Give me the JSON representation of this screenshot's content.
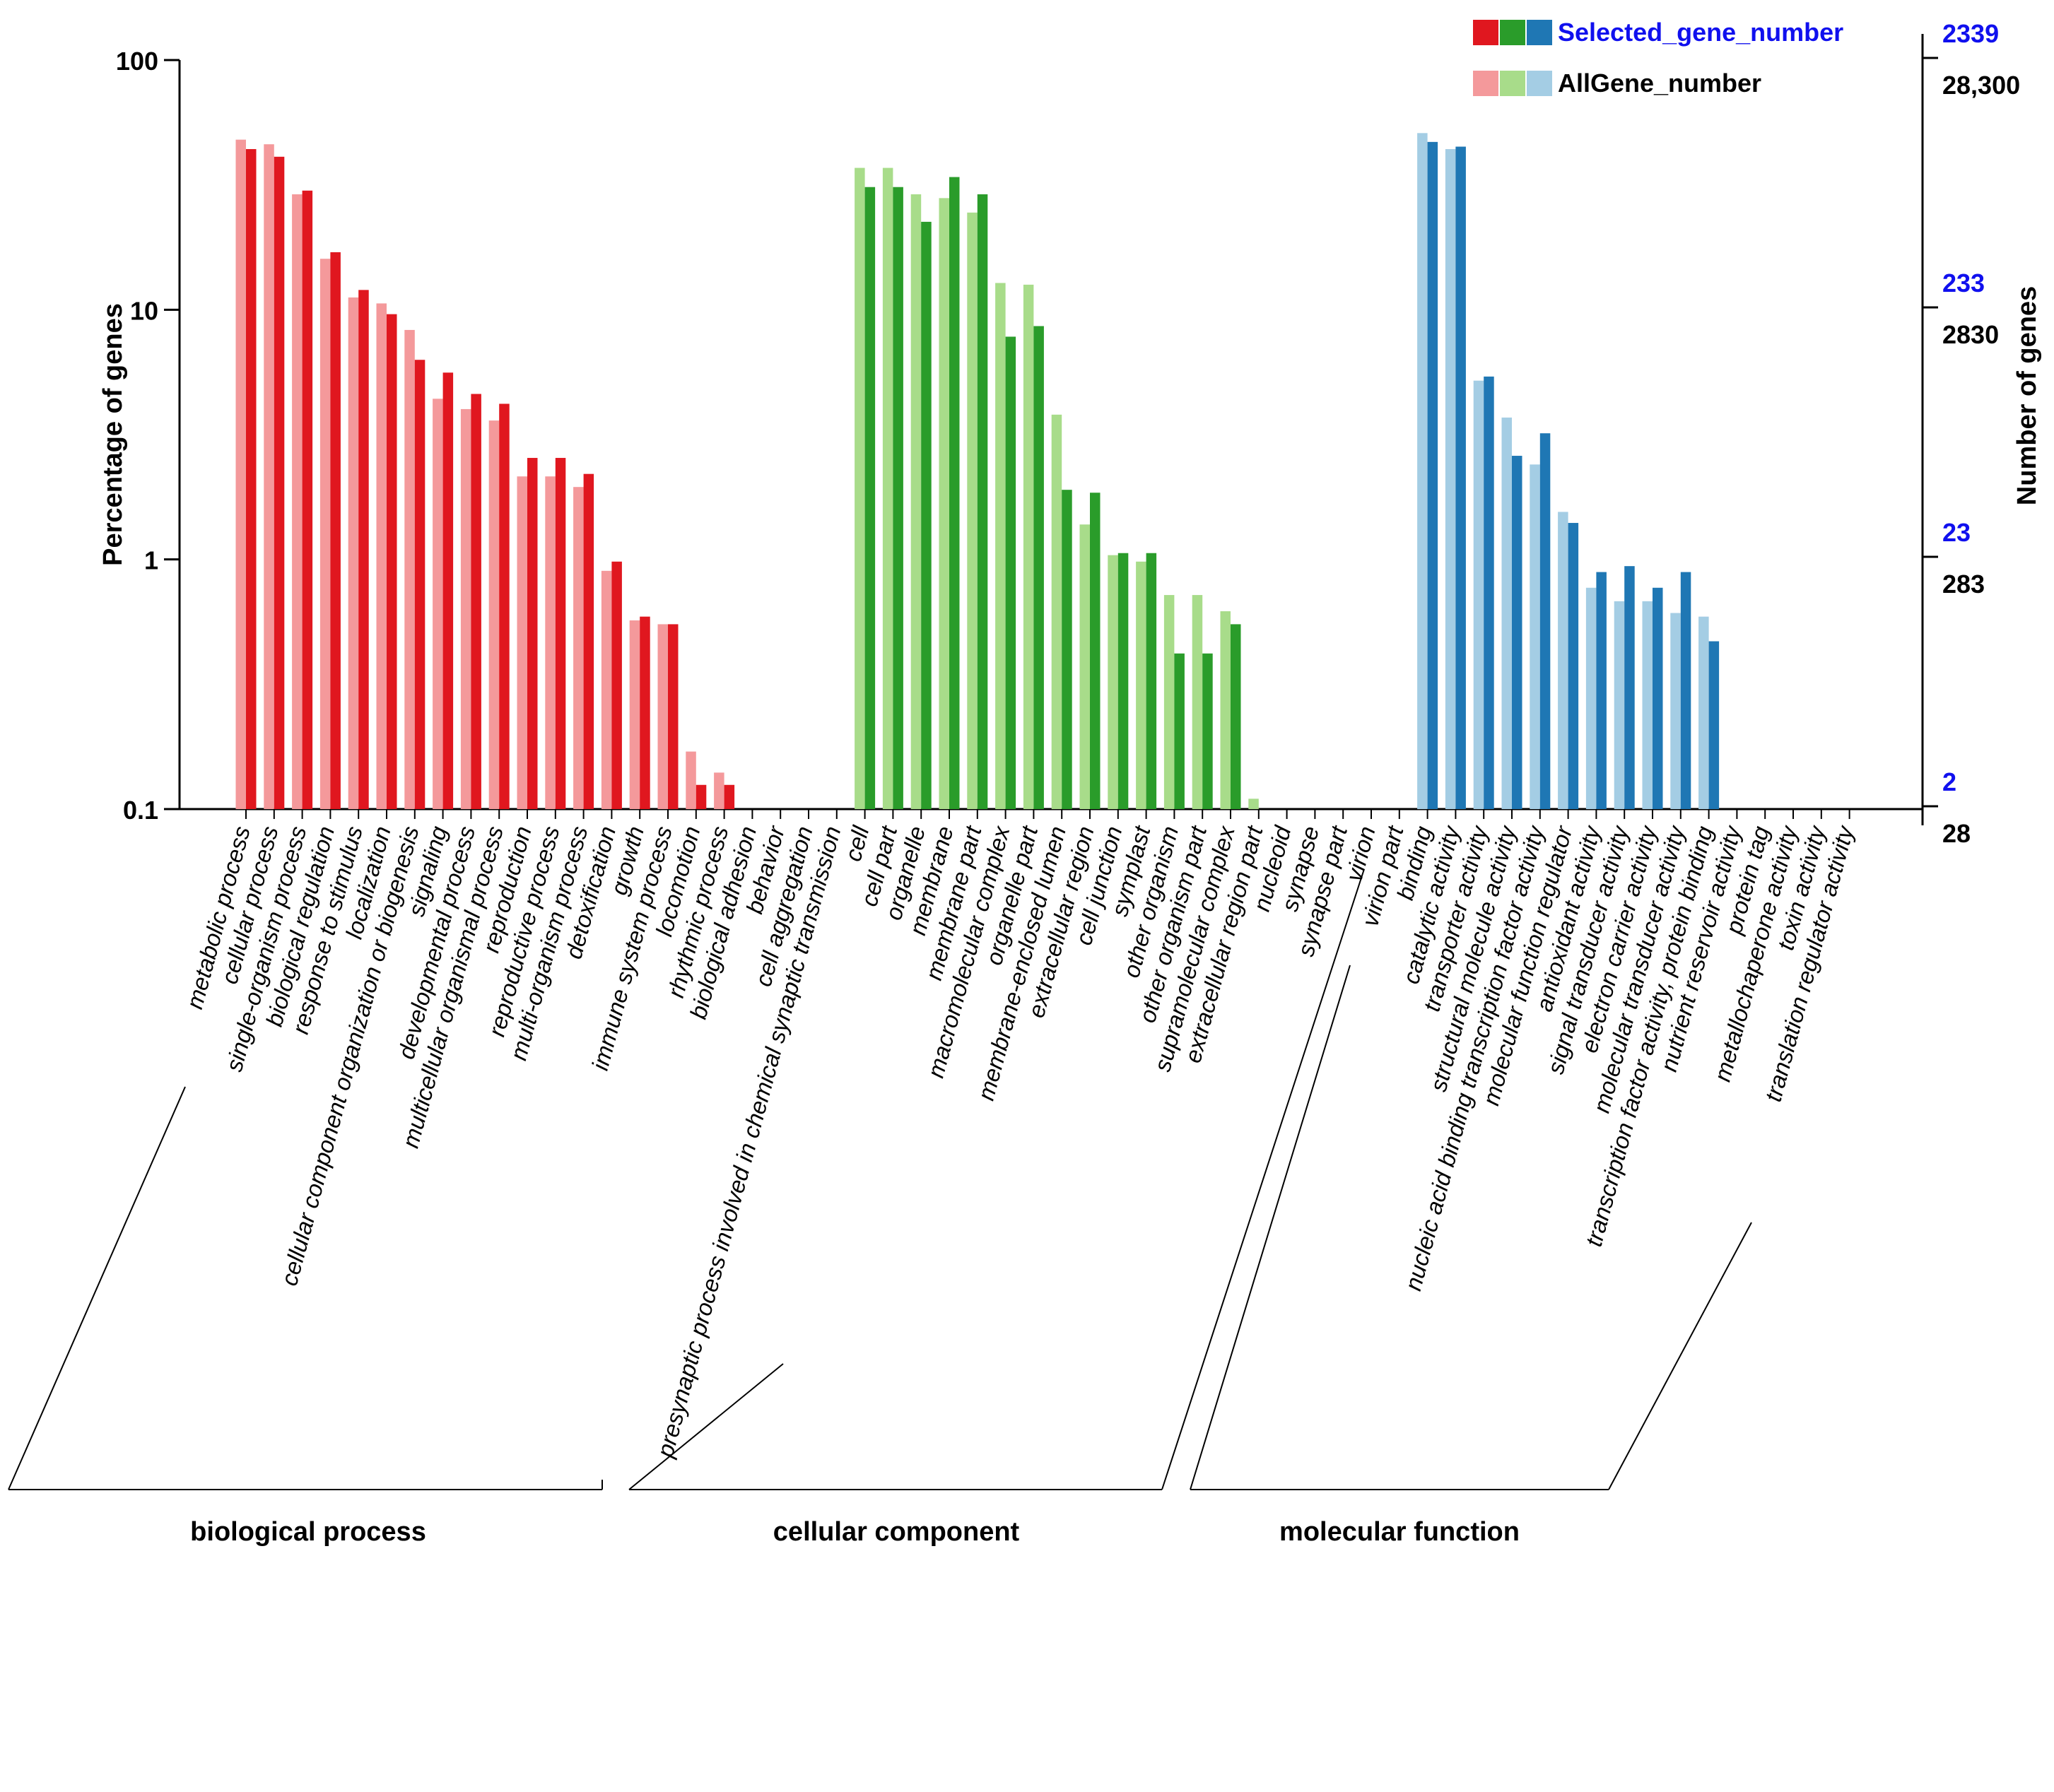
{
  "chart_data": {
    "type": "bar",
    "title": "",
    "xlabel": "",
    "ylabel": "Percentage of genes",
    "y2label": "Number of genes",
    "yscale": "log",
    "ylim": [
      0.1,
      100
    ],
    "yticks": [
      "100",
      "10",
      "1",
      "0.1"
    ],
    "right_ticks_selected": [
      "2339",
      "233",
      "23",
      "2"
    ],
    "right_ticks_all": [
      "28,300",
      "2830",
      "283",
      "28"
    ],
    "legend": {
      "selected": "Selected_gene_number",
      "all": "AllGene_number",
      "placement": "top-right"
    },
    "colors": {
      "bp_all": "#f4999b",
      "bp_sel": "#e0171f",
      "cc_all": "#a8dc8a",
      "cc_sel": "#2a9c2a",
      "mf_all": "#a4cde4",
      "mf_sel": "#1f77b4",
      "axis": "#000000",
      "right_selected": "#1010ee"
    },
    "groups": [
      {
        "name": "biological process",
        "key": "bp",
        "categories": [
          "metabolic process",
          "cellular process",
          "single-organism process",
          "biological regulation",
          "response to stimulus",
          "localization",
          "cellular component organization or biogenesis",
          "signaling",
          "developmental process",
          "multicellular organismal process",
          "reproduction",
          "reproductive process",
          "multi-organism process",
          "detoxification",
          "growth",
          "immune system process",
          "locomotion",
          "rhythmic process",
          "biological adhesion",
          "behavior",
          "cell aggregation",
          "presynaptic process involved in chemical synaptic transmission"
        ],
        "all": [
          48,
          46,
          29,
          16,
          11.2,
          10.6,
          8.3,
          4.4,
          4.0,
          3.6,
          2.15,
          2.15,
          1.95,
          0.9,
          0.57,
          0.55,
          0.17,
          0.14,
          0,
          0,
          0,
          0
        ],
        "selected": [
          44,
          41,
          30,
          17,
          12,
          9.6,
          6.3,
          5.6,
          4.6,
          4.2,
          2.55,
          2.55,
          2.2,
          0.98,
          0.59,
          0.55,
          0.125,
          0.125,
          0,
          0,
          0,
          0
        ]
      },
      {
        "name": "cellular component",
        "key": "cc",
        "categories": [
          "cell",
          "cell part",
          "organelle",
          "membrane",
          "membrane part",
          "macromolecular complex",
          "organelle part",
          "membrane-enclosed lumen",
          "extracellular region",
          "cell junction",
          "symplast",
          "other organism",
          "other organism part",
          "supramolecular complex",
          "extracellular region part",
          "nucleoid",
          "synapse",
          "synapse part",
          "virion",
          "virion part"
        ],
        "all": [
          37,
          37,
          29,
          28,
          24.5,
          12.8,
          12.6,
          3.8,
          1.38,
          1.04,
          0.98,
          0.72,
          0.72,
          0.62,
          0.11,
          0,
          0,
          0,
          0,
          0
        ],
        "selected": [
          31,
          31,
          22.5,
          34,
          29,
          7.8,
          8.6,
          1.9,
          1.85,
          1.06,
          1.06,
          0.42,
          0.42,
          0.55,
          0,
          0,
          0,
          0,
          0,
          0
        ]
      },
      {
        "name": "molecular function",
        "key": "mf",
        "categories": [
          "binding",
          "catalytic activity",
          "transporter activity",
          "structural molecule activity",
          "nucleic acid binding transcription factor activity",
          "molecular function regulator",
          "antioxidant activity",
          "signal transducer activity",
          "electron carrier activity",
          "molecular transducer activity",
          "transcription factor activity, protein binding",
          "nutrient reservoir activity",
          "protein tag",
          "metallochaperone activity",
          "toxin activity",
          "translation regulator activity"
        ],
        "all": [
          51,
          44,
          5.2,
          3.7,
          2.4,
          1.55,
          0.77,
          0.68,
          0.68,
          0.61,
          0.59,
          0,
          0,
          0,
          0,
          0
        ],
        "selected": [
          47,
          45,
          5.4,
          2.6,
          3.2,
          1.4,
          0.89,
          0.94,
          0.77,
          0.89,
          0.47,
          0,
          0,
          0,
          0,
          0
        ]
      }
    ]
  }
}
